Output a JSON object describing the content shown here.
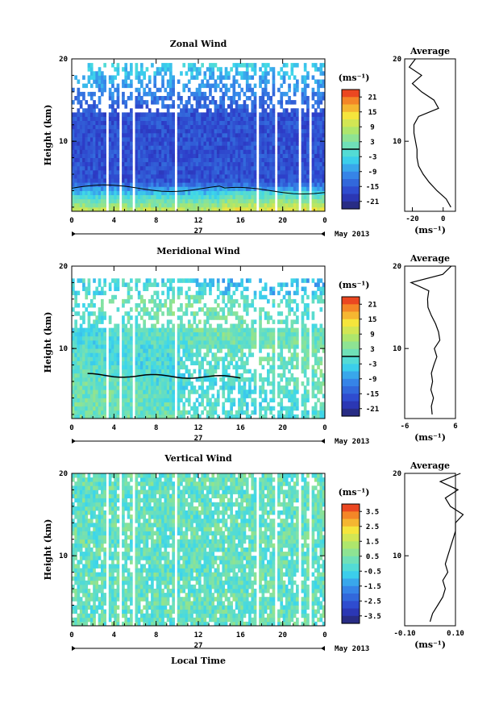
{
  "figure": {
    "x_axis_label": "Local Time",
    "date_label": "May 2013",
    "day_label": "27",
    "colorbar_unit": "(ms⁻¹)",
    "profile_unit": "(ms⁻¹)",
    "profile_title": "Average"
  },
  "chart_data": [
    {
      "type": "heatmap",
      "title": "Zonal Wind",
      "ylabel": "Height (km)",
      "xlabel": "Local Time",
      "x_ticks": [
        "0",
        "4",
        "8",
        "12",
        "16",
        "20",
        "0"
      ],
      "y_ticks": [
        "20",
        "10"
      ],
      "xlim": [
        0,
        24
      ],
      "ylim": [
        1.5,
        20
      ],
      "colorbar": {
        "ticks": [
          "21",
          "15",
          "9",
          "3",
          "-3",
          "-9",
          "-15",
          "-21"
        ],
        "range": [
          -24,
          24
        ],
        "zero_line": 0
      },
      "profile": {
        "title": "Average",
        "x_ticks": [
          "-20",
          "0"
        ],
        "xlim": [
          -25,
          8
        ],
        "y_ticks": [
          "20",
          "10"
        ],
        "heights": [
          2,
          3,
          4,
          5,
          6,
          7,
          8,
          9,
          10,
          11,
          12,
          13,
          14,
          15,
          16,
          17,
          18,
          19,
          20
        ],
        "values": [
          5,
          2,
          -4,
          -9,
          -13,
          -16,
          -17,
          -17,
          -18,
          -19,
          -19,
          -16,
          -3,
          -6,
          -14,
          -20,
          -14,
          -22,
          -18
        ]
      }
    },
    {
      "type": "heatmap",
      "title": "Meridional Wind",
      "ylabel": "Height (km)",
      "xlabel": "Local Time",
      "x_ticks": [
        "0",
        "4",
        "8",
        "12",
        "16",
        "20",
        "0"
      ],
      "y_ticks": [
        "20",
        "10"
      ],
      "xlim": [
        0,
        24
      ],
      "ylim": [
        1.5,
        20
      ],
      "colorbar": {
        "ticks": [
          "21",
          "15",
          "9",
          "3",
          "-3",
          "-9",
          "-15",
          "-21"
        ],
        "range": [
          -24,
          24
        ],
        "zero_line": 0
      },
      "profile": {
        "title": "Average",
        "x_ticks": [
          "-6",
          "6"
        ],
        "xlim": [
          -6,
          6
        ],
        "y_ticks": [
          "20",
          "10"
        ],
        "heights": [
          2,
          3,
          4,
          5,
          6,
          7,
          8,
          9,
          10,
          11,
          12,
          13,
          14,
          15,
          16,
          17,
          18,
          19,
          20
        ],
        "values": [
          0.5,
          0.3,
          0.8,
          0.2,
          0.6,
          0.3,
          0.9,
          1.6,
          1.0,
          2.3,
          2.0,
          1.3,
          0.3,
          -0.5,
          -0.6,
          -0.3,
          -4.5,
          3.0,
          5.0
        ]
      }
    },
    {
      "type": "heatmap",
      "title": "Vertical Wind",
      "ylabel": "Height (km)",
      "xlabel": "Local Time",
      "x_ticks": [
        "0",
        "4",
        "8",
        "12",
        "16",
        "20",
        "0"
      ],
      "y_ticks": [
        "20",
        "10"
      ],
      "xlim": [
        0,
        24
      ],
      "ylim": [
        1.5,
        20
      ],
      "colorbar": {
        "ticks": [
          "3.5",
          "2.5",
          "1.5",
          "0.5",
          "-0.5",
          "-1.5",
          "-2.5",
          "-3.5"
        ],
        "range": [
          -4,
          4
        ],
        "zero_line": null
      },
      "profile": {
        "title": "Average",
        "x_ticks": [
          "-0.10",
          "0.10"
        ],
        "xlim": [
          -0.1,
          0.1
        ],
        "y_ticks": [
          "20",
          "10"
        ],
        "heights": [
          2,
          3,
          4,
          5,
          6,
          7,
          8,
          9,
          10,
          11,
          12,
          13,
          14,
          15,
          16,
          17,
          18,
          19,
          20
        ],
        "values": [
          0.0,
          0.01,
          0.03,
          0.05,
          0.06,
          0.05,
          0.07,
          0.06,
          0.07,
          0.08,
          0.09,
          0.1,
          0.1,
          0.13,
          0.08,
          0.06,
          0.11,
          0.04,
          0.12
        ]
      }
    }
  ]
}
